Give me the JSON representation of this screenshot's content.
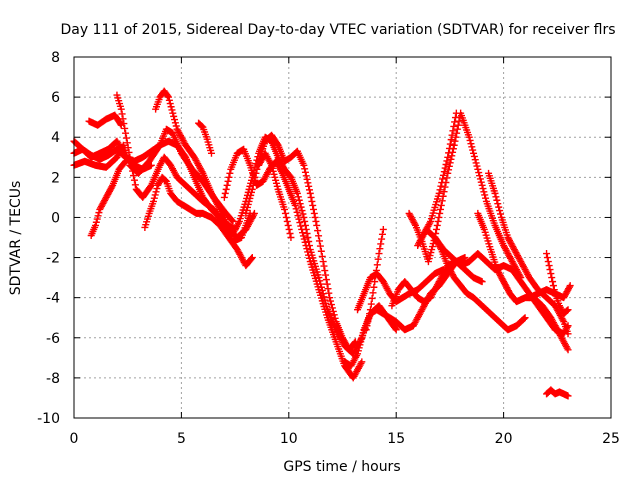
{
  "chart_data": {
    "type": "scatter",
    "title": "Day 111 of 2015, Sidereal Day-to-day VTEC variation (SDTVAR) for receiver flrs",
    "xlabel": "GPS time / hours",
    "ylabel": "SDTVAR / TECUs",
    "xlim": [
      0,
      25
    ],
    "ylim": [
      -10,
      8
    ],
    "x_ticks": [
      "0",
      "5",
      "10",
      "15",
      "20",
      "25"
    ],
    "y_ticks": [
      "-10",
      "-8",
      "-6",
      "-4",
      "-2",
      "0",
      "2",
      "4",
      "6",
      "8"
    ],
    "grid": true,
    "marker": "+",
    "color": "#ff0000",
    "series": [
      {
        "x": [
          0.0,
          0.4,
          0.8,
          1.2,
          1.6,
          2.0,
          2.4,
          2.8,
          3.2,
          3.6,
          4.0,
          4.4,
          4.8,
          5.2,
          5.6,
          6.0,
          6.4,
          6.8,
          7.2,
          7.5
        ],
        "y": [
          3.2,
          3.4,
          3.1,
          2.9,
          3.1,
          3.4,
          3.0,
          2.8,
          3.0,
          3.3,
          3.6,
          3.8,
          3.6,
          3.0,
          2.0,
          1.0,
          0.4,
          0.0,
          -0.4,
          -0.6
        ]
      },
      {
        "x": [
          0.0,
          0.5,
          1.0,
          1.5,
          2.0,
          2.3,
          2.6,
          3.0,
          3.5,
          4.0,
          4.3,
          4.6,
          5.0,
          5.5,
          6.0,
          6.5,
          7.0,
          7.4
        ],
        "y": [
          2.6,
          2.8,
          2.6,
          2.5,
          3.0,
          3.6,
          2.6,
          2.2,
          2.8,
          3.6,
          4.4,
          4.2,
          3.2,
          2.4,
          1.8,
          1.0,
          0.3,
          -0.2
        ]
      },
      {
        "x": [
          0.0,
          0.4,
          0.8,
          1.2,
          1.6,
          2.0,
          2.4,
          2.8,
          3.2,
          3.6
        ],
        "y": [
          3.8,
          3.4,
          3.0,
          3.2,
          3.4,
          3.8,
          3.0,
          2.6,
          2.4,
          2.6
        ]
      },
      {
        "x": [
          0.7,
          1.1,
          1.5,
          1.9,
          2.2
        ],
        "y": [
          4.8,
          4.6,
          4.9,
          5.1,
          4.6
        ]
      },
      {
        "x": [
          2.0,
          2.2,
          2.4,
          2.6,
          2.9,
          3.2,
          3.6,
          4.0,
          4.2,
          4.5,
          4.8,
          5.2,
          5.6,
          6.0,
          6.5,
          7.0,
          7.4,
          7.8,
          8.2
        ],
        "y": [
          6.1,
          5.4,
          4.2,
          3.0,
          1.4,
          1.0,
          1.6,
          2.6,
          3.0,
          2.6,
          2.0,
          1.6,
          1.2,
          0.8,
          0.4,
          -0.4,
          -1.2,
          -1.0,
          0.2
        ]
      },
      {
        "x": [
          0.8,
          1.0,
          1.2,
          1.5,
          1.8,
          2.1,
          2.4
        ],
        "y": [
          -0.9,
          -0.4,
          0.4,
          1.0,
          1.6,
          2.4,
          2.8
        ]
      },
      {
        "x": [
          3.3,
          3.5,
          3.7,
          3.9,
          4.1,
          4.3,
          4.5,
          4.8,
          5.1,
          5.4,
          5.7,
          6.0,
          6.4,
          6.8,
          7.2,
          7.6,
          8.0,
          8.3
        ],
        "y": [
          -0.5,
          0.2,
          0.8,
          1.6,
          2.0,
          1.8,
          1.2,
          0.8,
          0.6,
          0.4,
          0.2,
          0.2,
          0.0,
          -0.4,
          -1.0,
          -1.6,
          -2.4,
          -2.0
        ]
      },
      {
        "x": [
          3.8,
          4.0,
          4.2,
          4.4,
          4.6,
          4.8,
          5.2,
          5.6,
          6.0,
          6.4,
          6.8,
          7.2,
          7.6,
          8.0,
          8.4
        ],
        "y": [
          5.4,
          6.0,
          6.3,
          6.0,
          5.2,
          4.4,
          3.6,
          3.0,
          2.2,
          1.2,
          0.4,
          -0.6,
          -1.0,
          -0.6,
          0.2
        ]
      },
      {
        "x": [
          5.8,
          6.0,
          6.2,
          6.4
        ],
        "y": [
          4.7,
          4.5,
          3.9,
          3.2
        ]
      },
      {
        "x": [
          7.0,
          7.3,
          7.6,
          7.9,
          8.2,
          8.5,
          8.8,
          9.1,
          9.4,
          9.7,
          10.0,
          10.3,
          10.6,
          11.0,
          11.4,
          11.8,
          12.2,
          12.6,
          13.0,
          13.4
        ],
        "y": [
          1.0,
          2.4,
          3.2,
          3.4,
          2.6,
          1.6,
          1.8,
          2.4,
          2.8,
          2.2,
          1.4,
          0.6,
          -0.6,
          -2.2,
          -3.6,
          -5.0,
          -6.2,
          -7.4,
          -8.0,
          -7.2
        ]
      },
      {
        "x": [
          7.4,
          7.7,
          8.0,
          8.3,
          8.6,
          8.9,
          9.2,
          9.5,
          9.8,
          10.1,
          10.4,
          10.7,
          11.0,
          11.4,
          11.8,
          12.2,
          12.6,
          13.0,
          13.4,
          13.8,
          14.2,
          14.6,
          15.0
        ],
        "y": [
          -0.8,
          -0.2,
          0.8,
          2.0,
          3.2,
          4.0,
          3.8,
          3.0,
          2.4,
          2.0,
          1.2,
          0.0,
          -1.6,
          -3.0,
          -4.6,
          -5.6,
          -6.4,
          -6.8,
          -6.0,
          -4.8,
          -4.4,
          -5.0,
          -5.6
        ]
      },
      {
        "x": [
          8.0,
          8.3,
          8.6,
          8.9,
          9.2,
          9.5,
          9.8,
          10.1,
          10.4,
          10.7,
          11.0,
          11.3,
          11.6,
          11.9,
          12.2,
          12.5,
          12.8,
          13.1
        ],
        "y": [
          0.2,
          1.4,
          2.8,
          3.8,
          4.1,
          3.6,
          2.8,
          3.0,
          3.3,
          2.6,
          1.2,
          -0.4,
          -2.2,
          -4.0,
          -5.2,
          -6.0,
          -6.6,
          -6.2
        ]
      },
      {
        "x": [
          8.6,
          8.9,
          9.2,
          9.5,
          9.8,
          10.1
        ],
        "y": [
          2.6,
          3.2,
          2.6,
          1.4,
          0.4,
          -1.0
        ]
      },
      {
        "x": [
          12.6,
          12.9,
          13.2,
          13.5,
          13.8,
          14.1,
          14.4,
          14.7,
          15.0,
          15.4,
          15.8,
          16.2,
          16.6,
          17.0,
          17.4,
          17.8,
          18.2
        ],
        "y": [
          -7.2,
          -7.4,
          -6.8,
          -5.6,
          -4.8,
          -4.6,
          -4.8,
          -5.0,
          -5.2,
          -5.6,
          -5.4,
          -4.6,
          -3.8,
          -3.4,
          -2.8,
          -2.2,
          -2.0
        ]
      },
      {
        "x": [
          13.6,
          13.8,
          14.0,
          14.2,
          14.4
        ],
        "y": [
          -5.6,
          -4.6,
          -3.2,
          -1.8,
          -0.6
        ]
      },
      {
        "x": [
          13.2,
          13.5,
          13.8,
          14.1,
          14.4,
          14.7,
          15.0,
          15.3,
          15.6,
          16.0,
          16.4,
          16.8,
          17.2
        ],
        "y": [
          -4.6,
          -3.8,
          -3.0,
          -2.8,
          -3.2,
          -3.8,
          -4.2,
          -4.0,
          -3.8,
          -3.6,
          -3.2,
          -2.8,
          -2.6
        ]
      },
      {
        "x": [
          14.8,
          15.1,
          15.4,
          15.7,
          16.0,
          16.3,
          16.6,
          17.0,
          17.4,
          17.8,
          18.2,
          18.6,
          19.0
        ],
        "y": [
          -4.4,
          -3.6,
          -3.2,
          -3.6,
          -4.0,
          -4.2,
          -4.0,
          -3.2,
          -2.4,
          -2.2,
          -2.6,
          -3.0,
          -3.2
        ]
      },
      {
        "x": [
          15.6,
          15.9,
          16.2,
          16.5,
          16.8,
          17.1,
          17.4,
          17.7,
          18.0,
          18.4,
          18.8,
          19.2,
          19.6,
          20.0,
          20.4,
          20.8
        ],
        "y": [
          0.2,
          -0.4,
          -1.2,
          -2.2,
          -1.0,
          0.6,
          2.2,
          3.6,
          5.2,
          4.0,
          2.4,
          0.8,
          -0.4,
          -1.4,
          -2.2,
          -3.0
        ]
      },
      {
        "x": [
          16.8,
          17.1,
          17.4,
          17.7,
          18.0,
          18.3,
          18.6,
          19.0,
          19.4,
          19.8,
          20.2,
          20.6,
          21.0
        ],
        "y": [
          -1.0,
          -1.6,
          -2.4,
          -3.0,
          -3.4,
          -3.8,
          -4.0,
          -4.4,
          -4.8,
          -5.2,
          -5.6,
          -5.4,
          -5.0
        ]
      },
      {
        "x": [
          16.2,
          16.6,
          17.0,
          17.4,
          17.8
        ],
        "y": [
          -1.0,
          -0.2,
          1.2,
          3.0,
          5.2
        ]
      },
      {
        "x": [
          16.0,
          16.4,
          16.8,
          17.2,
          17.6,
          18.0,
          18.4,
          18.8,
          19.2,
          19.6,
          20.0,
          20.4,
          20.8,
          21.2,
          21.6,
          22.0,
          22.4,
          22.8,
          23.0
        ],
        "y": [
          -1.4,
          -0.6,
          -1.0,
          -1.6,
          -2.0,
          -2.4,
          -2.2,
          -1.8,
          -2.2,
          -2.6,
          -2.4,
          -2.6,
          -3.2,
          -3.8,
          -4.4,
          -5.0,
          -5.6,
          -5.8,
          -5.4
        ]
      },
      {
        "x": [
          18.8,
          19.1,
          19.4,
          19.7,
          20.0,
          20.3,
          20.6,
          21.0,
          21.4,
          21.8,
          22.2,
          22.6,
          23.0
        ],
        "y": [
          0.2,
          -0.6,
          -1.6,
          -2.6,
          -3.2,
          -3.8,
          -4.2,
          -4.0,
          -4.0,
          -4.4,
          -5.0,
          -5.8,
          -6.6
        ]
      },
      {
        "x": [
          19.3,
          19.6,
          19.9,
          20.2,
          20.5,
          20.8,
          21.2,
          21.6,
          22.0,
          22.4,
          22.8,
          23.0
        ],
        "y": [
          2.2,
          1.2,
          0.0,
          -1.0,
          -1.6,
          -2.2,
          -3.0,
          -3.6,
          -4.0,
          -4.4,
          -5.2,
          -5.8
        ]
      },
      {
        "x": [
          21.2,
          21.6,
          22.0,
          22.4,
          22.8,
          23.1
        ],
        "y": [
          -4.0,
          -3.8,
          -3.6,
          -3.8,
          -4.0,
          -3.4
        ]
      },
      {
        "x": [
          22.0,
          22.2,
          22.4,
          22.6,
          22.8,
          23.0
        ],
        "y": [
          -1.8,
          -2.8,
          -3.8,
          -4.4,
          -4.8,
          -4.6
        ]
      },
      {
        "x": [
          22.0,
          22.2,
          22.4,
          22.6,
          22.8,
          23.0
        ],
        "y": [
          -8.8,
          -8.6,
          -8.8,
          -8.7,
          -8.8,
          -8.9
        ]
      }
    ]
  }
}
